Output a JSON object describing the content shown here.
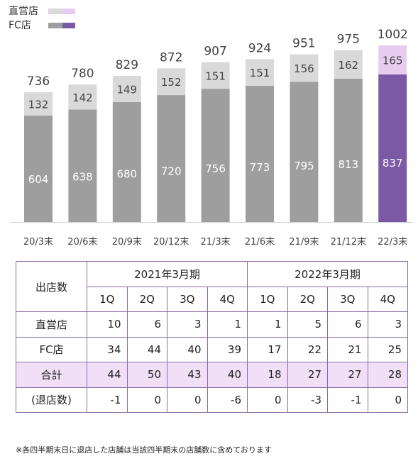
{
  "chart_data": {
    "type": "bar",
    "stacked": true,
    "categories": [
      "20/3末",
      "20/6末",
      "20/9末",
      "20/12末",
      "21/3末",
      "21/6末",
      "21/9末",
      "21/12末",
      "22/3末"
    ],
    "series": [
      {
        "name": "FC店",
        "values": [
          604,
          638,
          680,
          720,
          756,
          773,
          795,
          813,
          837
        ]
      },
      {
        "name": "直営店",
        "values": [
          132,
          142,
          149,
          152,
          151,
          151,
          156,
          162,
          165
        ]
      }
    ],
    "totals": [
      736,
      780,
      829,
      872,
      907,
      924,
      951,
      975,
      1002
    ],
    "highlight_index": 8,
    "colors": {
      "fc": "#9e9e9e",
      "direct": "#d9d9d9",
      "fc_highlight": "#7a5aa5",
      "direct_highlight": "#e6cdf0",
      "fc_label": "#ffffff",
      "direct_label": "#444444"
    },
    "legend": {
      "placement": "top-left",
      "entries": [
        {
          "label": "直営店",
          "colors": [
            "#d9d9d9",
            "#e6cdf0"
          ]
        },
        {
          "label": "FC店",
          "colors": [
            "#9e9e9e",
            "#7a5aa5"
          ]
        }
      ]
    },
    "ylim": [
      0,
      1100
    ],
    "grid": false
  },
  "table": {
    "corner": "出店数",
    "periods": [
      "2021年3月期",
      "2022年3月期"
    ],
    "quarters": [
      "1Q",
      "2Q",
      "3Q",
      "4Q",
      "1Q",
      "2Q",
      "3Q",
      "4Q"
    ],
    "rows": [
      {
        "label": "直営店",
        "values": [
          "10",
          "6",
          "3",
          "1",
          "1",
          "5",
          "6",
          "3"
        ]
      },
      {
        "label": "FC店",
        "values": [
          "34",
          "44",
          "40",
          "39",
          "17",
          "22",
          "21",
          "25"
        ]
      },
      {
        "label": "合計",
        "values": [
          "44",
          "50",
          "43",
          "40",
          "18",
          "27",
          "27",
          "28"
        ],
        "highlight": true
      },
      {
        "label": "(退店数)",
        "values": [
          "-1",
          "0",
          "0",
          "-6",
          "0",
          "-3",
          "-1",
          "0"
        ]
      }
    ]
  },
  "footnote": "※各四半期末日に退店した店舗は当該四半期末の店舗数に含めております"
}
